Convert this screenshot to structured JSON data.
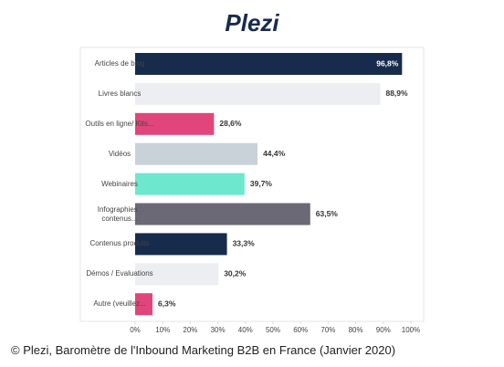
{
  "logo": "Plezi",
  "caption": "© Plezi, Baromètre de l'Inbound Marketing B2B en France (Janvier 2020)",
  "chart_data": {
    "type": "hbar",
    "categories": [
      "Articles de blog",
      "Livres blancs",
      "Outils en ligne/ Kits...",
      "Vidéos",
      "Webinaires",
      "Infographies : contenus...",
      "Contenus produits",
      "Démos / Evaluations",
      "Autre (veuillez..."
    ],
    "values": [
      96.8,
      88.9,
      28.6,
      44.4,
      39.7,
      63.5,
      33.3,
      30.2,
      6.3
    ],
    "value_labels": [
      "96,8%",
      "88,9%",
      "28,6%",
      "44,4%",
      "39,7%",
      "63,5%",
      "33,3%",
      "30,2%",
      "6,3%"
    ],
    "colors": [
      "#172b4d",
      "#eceef1",
      "#e0457b",
      "#c9d1d9",
      "#6ee7cf",
      "#6b6976",
      "#172b4d",
      "#eceef1",
      "#e0457b"
    ],
    "xlim": [
      0,
      100
    ],
    "xticks": [
      {
        "value": 0,
        "label": "0%"
      },
      {
        "value": 10,
        "label": "10%"
      },
      {
        "value": 20,
        "label": "20%"
      },
      {
        "value": 30,
        "label": "30%"
      },
      {
        "value": 40,
        "label": "40%"
      },
      {
        "value": 50,
        "label": "50%"
      },
      {
        "value": 60,
        "label": "60%"
      },
      {
        "value": 70,
        "label": "70%"
      },
      {
        "value": 80,
        "label": "80%"
      },
      {
        "value": 90,
        "label": "90%"
      },
      {
        "value": 100,
        "label": "100%"
      }
    ]
  }
}
